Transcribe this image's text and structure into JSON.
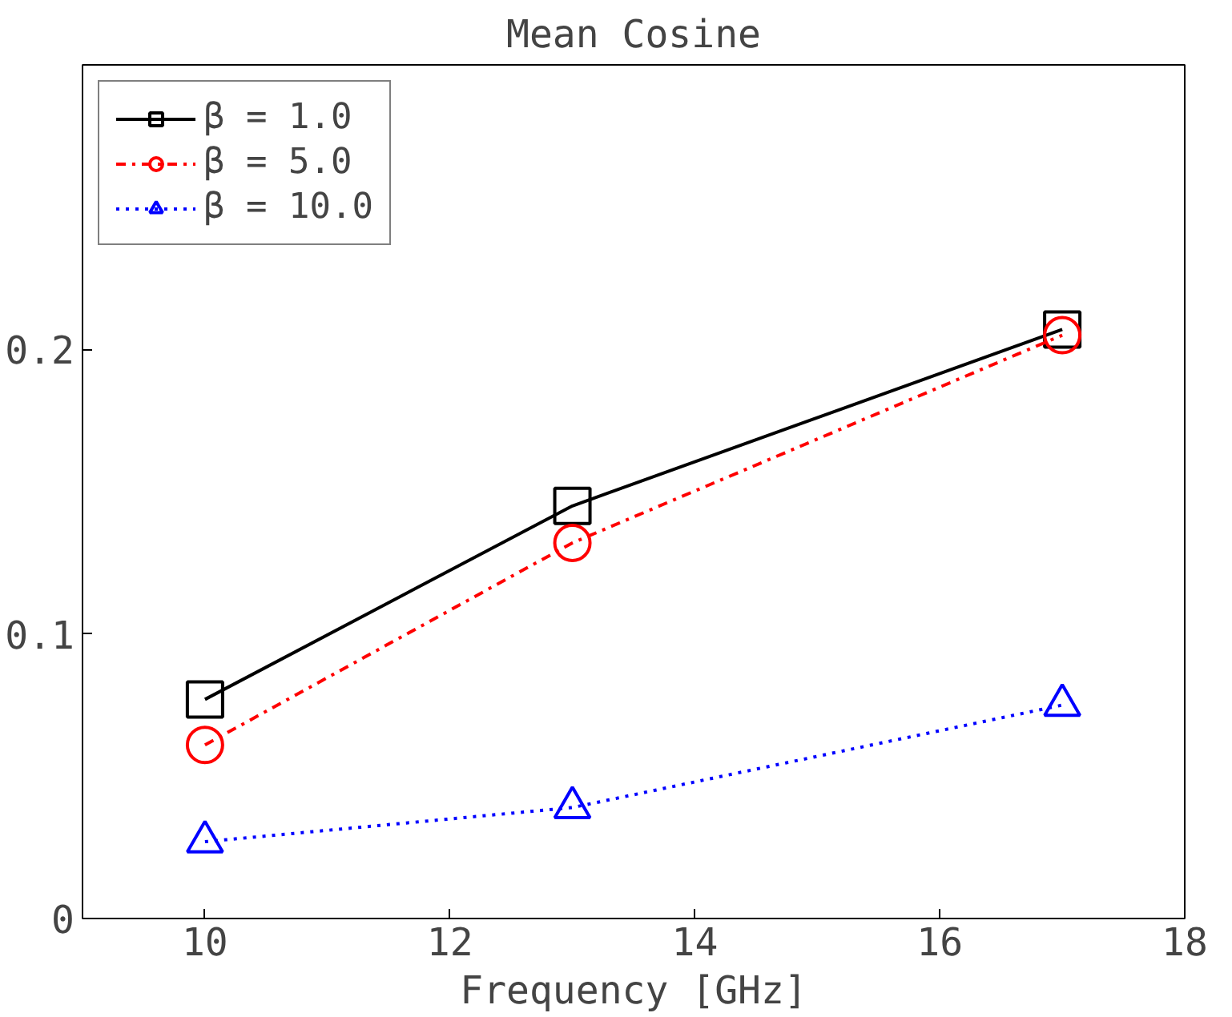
{
  "chart_data": {
    "type": "line",
    "title": "Mean Cosine",
    "xlabel": "Frequency [GHz]",
    "x": [
      10,
      13,
      17
    ],
    "xlim": [
      9,
      18
    ],
    "xticks": [
      10,
      12,
      14,
      16,
      18
    ],
    "ylim": [
      0,
      0.3
    ],
    "yticks": [
      0,
      0.1,
      0.2
    ],
    "legend": "top left",
    "grid": false,
    "series": [
      {
        "name": "β = 1.0",
        "color": "#000000",
        "values": [
          0.077,
          0.145,
          0.207
        ],
        "marker": "square",
        "line_style": "solid"
      },
      {
        "name": "β = 5.0",
        "color": "#ff0000",
        "values": [
          0.061,
          0.132,
          0.205
        ],
        "marker": "circle",
        "line_style": "dashdot"
      },
      {
        "name": "β = 10.0",
        "color": "#0000ff",
        "values": [
          0.027,
          0.039,
          0.075
        ],
        "marker": "triangle",
        "line_style": "dotted"
      }
    ]
  }
}
